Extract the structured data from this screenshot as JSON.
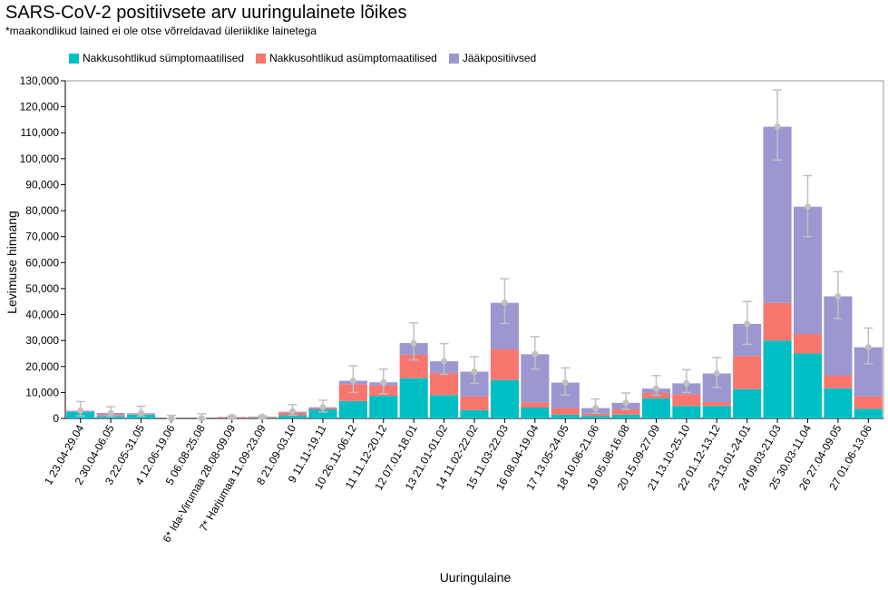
{
  "title": "SARS-CoV-2 positiivsete arv uuringulainete lõikes",
  "subtitle": "*maakondlikud lained ei ole otse võrreldavad üleriiklike lainetega",
  "chart_data": {
    "type": "bar",
    "stacked": true,
    "xlabel": "Uuringulaine",
    "ylabel": "Levimuse hinnang",
    "ylim": [
      0,
      130000
    ],
    "yticks": [
      0,
      10000,
      20000,
      30000,
      40000,
      50000,
      60000,
      70000,
      80000,
      90000,
      100000,
      110000,
      120000,
      130000
    ],
    "ytick_labels": [
      "0",
      "10,000",
      "20,000",
      "30,000",
      "40,000",
      "50,000",
      "60,000",
      "70,000",
      "80,000",
      "90,000",
      "100,000",
      "110,000",
      "120,000",
      "130,000"
    ],
    "grid": false,
    "legend_position": "top-left",
    "categories": [
      "1 23.04-29.04",
      "2 30.04-06.05",
      "3 22.05-31.05",
      "4 12.06-19.06",
      "5 06.08-25.08",
      "6* Ida-Virumaa 28.08-09.09",
      "7* Harjumaa 11.09-23.09",
      "8 21.09-03.10",
      "9 11.11-19.11",
      "10 26.11-06.12",
      "11 11.12-20.12",
      "12 07.01-18.01",
      "13 21.01-01.02",
      "14 11.02-22.02",
      "15 11.03-22.03",
      "16 08.04-19.04",
      "17 13.05-24.05",
      "18 10.06-21.06",
      "19 05.08-16.08",
      "20 15.09-27.09",
      "21 13.10-25.10",
      "22 01.12-13.12",
      "23 13.01-24.01",
      "24 09.03-21.03",
      "25 30.03-11.04",
      "26 27.04-09.05",
      "27 01.06-13.06"
    ],
    "series": [
      {
        "name": "Nakkusohtlikud sümptomaatilised",
        "color": "#00bfc4",
        "values": [
          2500,
          800,
          1500,
          0,
          0,
          100,
          200,
          1200,
          3500,
          6700,
          8700,
          15500,
          9000,
          3200,
          14800,
          4200,
          1500,
          1000,
          1500,
          7800,
          4800,
          4800,
          11300,
          30000,
          25000,
          11600,
          3700
        ]
      },
      {
        "name": "Nakkusohtlikud asümptomaatilised",
        "color": "#f8766d",
        "values": [
          0,
          500,
          200,
          0,
          0,
          300,
          300,
          1000,
          500,
          6500,
          4000,
          9000,
          8500,
          5300,
          11900,
          2000,
          2500,
          800,
          2000,
          2000,
          4500,
          1500,
          12700,
          14500,
          7500,
          5000,
          4800
        ]
      },
      {
        "name": "Jääkpositiivsed",
        "color": "#9c96d1",
        "values": [
          500,
          800,
          300,
          0,
          0,
          200,
          200,
          400,
          300,
          1300,
          1200,
          4500,
          4500,
          9500,
          17800,
          18500,
          9800,
          2200,
          2500,
          1700,
          4200,
          11000,
          12400,
          67800,
          49000,
          30400,
          18900
        ]
      }
    ],
    "error_bars": {
      "center": [
        3000,
        2000,
        2000,
        0,
        0,
        600,
        700,
        2700,
        4300,
        14500,
        13900,
        29000,
        22000,
        18000,
        44500,
        24800,
        13800,
        4000,
        6000,
        11500,
        13500,
        17300,
        36400,
        112300,
        81500,
        47000,
        27400
      ],
      "low": [
        1000,
        800,
        900,
        0,
        0,
        200,
        200,
        1200,
        2500,
        10000,
        9500,
        22500,
        17000,
        13500,
        36500,
        19000,
        9000,
        2000,
        3500,
        9000,
        10000,
        12000,
        28500,
        99500,
        70000,
        38500,
        21000
      ],
      "high": [
        6500,
        4500,
        4700,
        1200,
        1800,
        1000,
        1000,
        5300,
        7000,
        20300,
        19000,
        36800,
        28800,
        23800,
        53800,
        31500,
        19500,
        7500,
        9800,
        16500,
        18800,
        23500,
        45000,
        126500,
        93500,
        56500,
        34800
      ],
      "color": "#c0c0c0"
    }
  }
}
